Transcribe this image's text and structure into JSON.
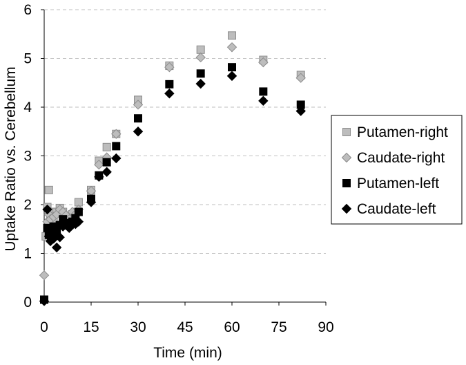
{
  "chart_data": {
    "type": "scatter",
    "xlabel": "Time (min)",
    "ylabel": "Uptake Ratio vs. Cerebellum",
    "xlim": [
      0,
      90
    ],
    "ylim": [
      0,
      6
    ],
    "xticks": [
      "0",
      "15",
      "30",
      "45",
      "60",
      "75",
      "90"
    ],
    "yticks": [
      "0",
      "1",
      "2",
      "3",
      "4",
      "5",
      "6"
    ],
    "grid": "horizontal dashed",
    "legend_position": "right",
    "series": [
      {
        "name": "Putamen-right",
        "marker": "square",
        "color": "#bdbdbd",
        "points": [
          [
            0,
            0.05
          ],
          [
            0.5,
            1.35
          ],
          [
            1,
            1.95
          ],
          [
            1.5,
            2.3
          ],
          [
            2,
            1.75
          ],
          [
            2.5,
            1.85
          ],
          [
            3,
            1.65
          ],
          [
            4,
            1.85
          ],
          [
            5,
            1.93
          ],
          [
            6,
            1.85
          ],
          [
            7,
            1.75
          ],
          [
            8,
            1.65
          ],
          [
            9,
            1.8
          ],
          [
            10,
            1.85
          ],
          [
            11,
            2.05
          ],
          [
            15,
            2.3
          ],
          [
            17.5,
            2.9
          ],
          [
            20,
            3.18
          ],
          [
            23,
            3.45
          ],
          [
            30,
            4.15
          ],
          [
            40,
            4.85
          ],
          [
            50,
            5.18
          ],
          [
            60,
            5.47
          ],
          [
            70,
            4.97
          ],
          [
            82,
            4.66
          ]
        ]
      },
      {
        "name": "Caudate-right",
        "marker": "diamond",
        "color": "#bdbdbd",
        "points": [
          [
            0,
            0.55
          ],
          [
            1,
            1.65
          ],
          [
            1.5,
            1.8
          ],
          [
            2,
            1.7
          ],
          [
            3,
            1.75
          ],
          [
            4,
            1.8
          ],
          [
            5,
            1.9
          ],
          [
            6,
            1.85
          ],
          [
            7,
            1.78
          ],
          [
            8,
            1.7
          ],
          [
            9,
            1.85
          ],
          [
            10,
            1.8
          ],
          [
            11,
            1.9
          ],
          [
            15,
            2.28
          ],
          [
            17.5,
            2.82
          ],
          [
            20,
            2.97
          ],
          [
            23,
            3.45
          ],
          [
            30,
            4.05
          ],
          [
            40,
            4.82
          ],
          [
            50,
            5.02
          ],
          [
            60,
            5.23
          ],
          [
            70,
            4.92
          ],
          [
            82,
            4.6
          ]
        ]
      },
      {
        "name": "Putamen-left",
        "marker": "square",
        "color": "#000000",
        "points": [
          [
            0,
            0.05
          ],
          [
            1,
            1.52
          ],
          [
            1.5,
            1.38
          ],
          [
            2,
            1.45
          ],
          [
            3,
            1.55
          ],
          [
            4,
            1.42
          ],
          [
            5,
            1.58
          ],
          [
            6,
            1.7
          ],
          [
            7,
            1.62
          ],
          [
            8,
            1.58
          ],
          [
            9,
            1.65
          ],
          [
            10,
            1.72
          ],
          [
            11,
            1.85
          ],
          [
            15,
            2.12
          ],
          [
            17.5,
            2.6
          ],
          [
            20,
            2.87
          ],
          [
            23,
            3.2
          ],
          [
            30,
            3.77
          ],
          [
            40,
            4.47
          ],
          [
            50,
            4.69
          ],
          [
            60,
            4.82
          ],
          [
            70,
            4.32
          ],
          [
            82,
            4.05
          ]
        ]
      },
      {
        "name": "Caudate-left",
        "marker": "diamond",
        "color": "#000000",
        "points": [
          [
            0,
            0.02
          ],
          [
            1,
            1.9
          ],
          [
            1.5,
            1.35
          ],
          [
            2,
            1.25
          ],
          [
            3,
            1.3
          ],
          [
            4,
            1.12
          ],
          [
            5,
            1.33
          ],
          [
            6,
            1.55
          ],
          [
            7,
            1.58
          ],
          [
            8,
            1.52
          ],
          [
            9,
            1.6
          ],
          [
            10,
            1.6
          ],
          [
            11,
            1.65
          ],
          [
            15,
            2.05
          ],
          [
            17.5,
            2.57
          ],
          [
            20,
            2.67
          ],
          [
            23,
            2.95
          ],
          [
            30,
            3.5
          ],
          [
            40,
            4.28
          ],
          [
            50,
            4.48
          ],
          [
            60,
            4.64
          ],
          [
            70,
            4.13
          ],
          [
            82,
            3.92
          ]
        ]
      }
    ]
  }
}
